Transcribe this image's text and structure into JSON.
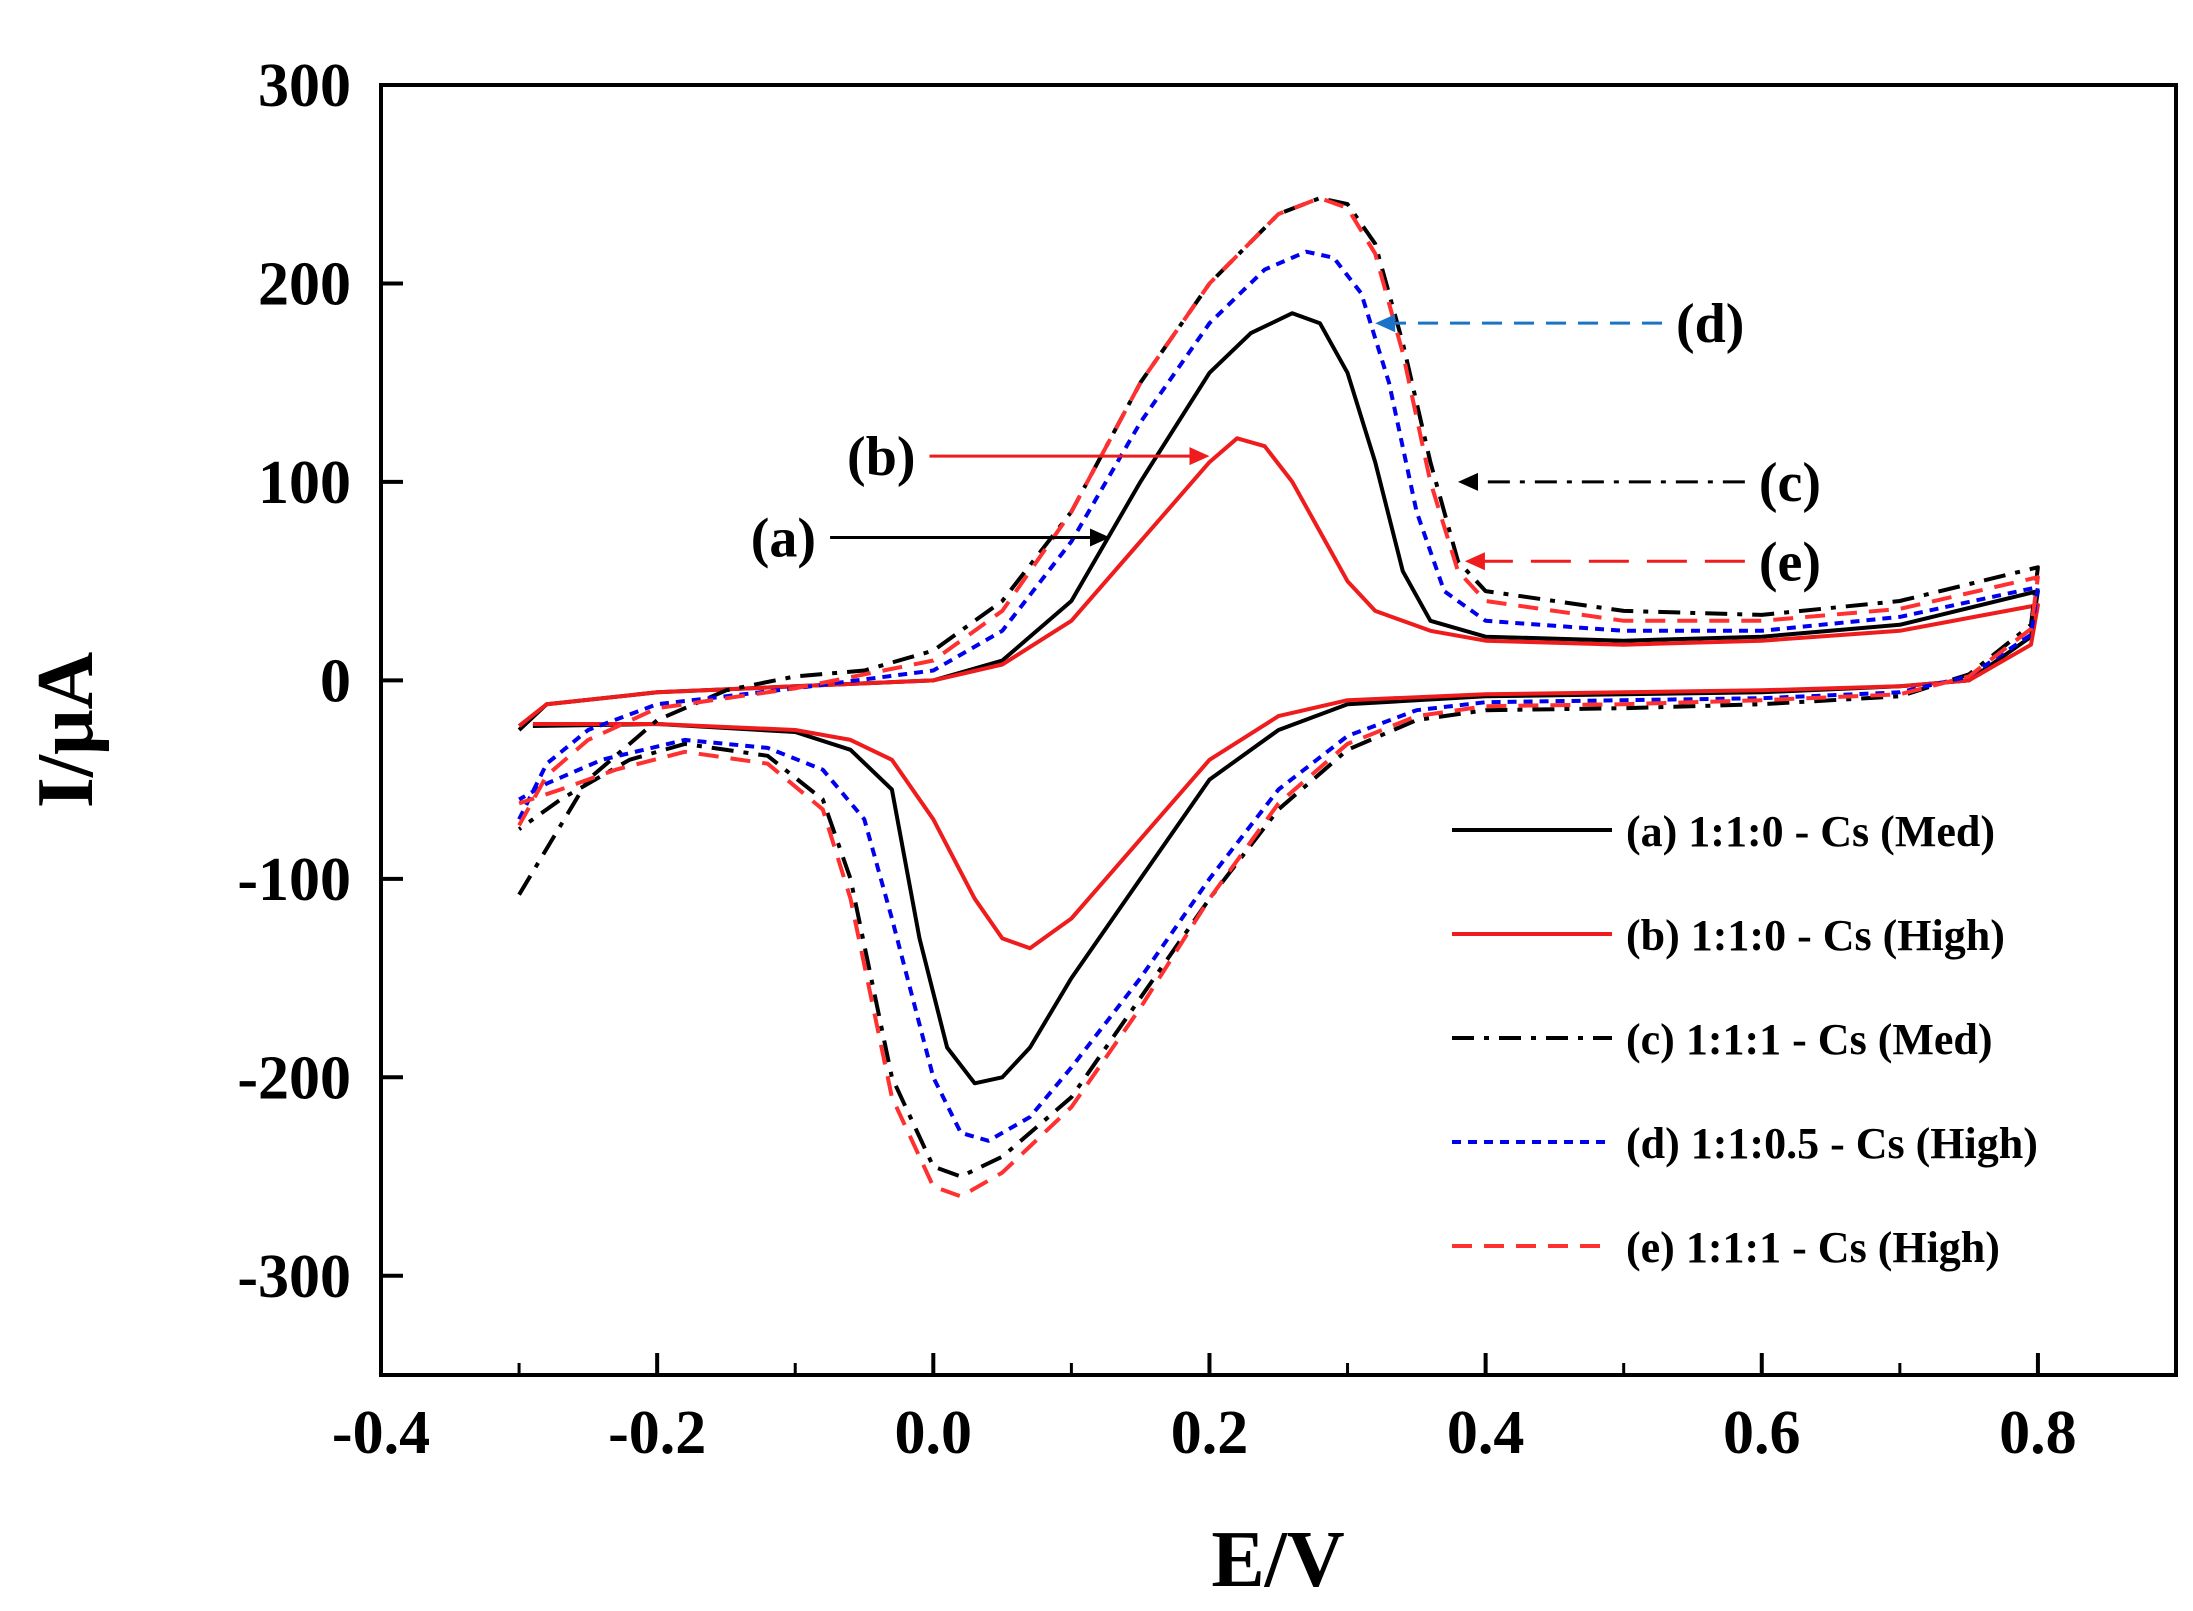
{
  "chart_data": {
    "type": "line",
    "title": "",
    "xlabel": "E/V",
    "ylabel": "I/μA",
    "xlim": [
      -0.4,
      0.9
    ],
    "ylim": [
      -350,
      300
    ],
    "x_ticks": [
      -0.4,
      -0.2,
      0.0,
      0.2,
      0.4,
      0.6,
      0.8
    ],
    "x_tick_labels": [
      "-0.4",
      "-0.2",
      "0.0",
      "0.2",
      "0.4",
      "0.6",
      "0.8"
    ],
    "y_ticks": [
      -300,
      -200,
      -100,
      0,
      100,
      200,
      300
    ],
    "y_tick_labels": [
      "-300",
      "-200",
      "-100",
      "0",
      "100",
      "200",
      "300"
    ],
    "grid": false,
    "legend_position": "bottom-right",
    "series": [
      {
        "name": "(a) 1:1:0 - Cs (Med)",
        "tag": "(a)",
        "color": "#000000",
        "dash": "solid",
        "points": [
          [
            -0.3,
            -25
          ],
          [
            -0.28,
            -12
          ],
          [
            -0.2,
            -6
          ],
          [
            -0.1,
            -3
          ],
          [
            0.0,
            0
          ],
          [
            0.05,
            10
          ],
          [
            0.1,
            40
          ],
          [
            0.15,
            100
          ],
          [
            0.2,
            155
          ],
          [
            0.23,
            175
          ],
          [
            0.26,
            185
          ],
          [
            0.28,
            180
          ],
          [
            0.3,
            155
          ],
          [
            0.32,
            110
          ],
          [
            0.34,
            55
          ],
          [
            0.36,
            30
          ],
          [
            0.4,
            22
          ],
          [
            0.5,
            20
          ],
          [
            0.6,
            22
          ],
          [
            0.7,
            28
          ],
          [
            0.8,
            45
          ],
          [
            0.795,
            22
          ],
          [
            0.75,
            0
          ],
          [
            0.7,
            -3
          ],
          [
            0.6,
            -6
          ],
          [
            0.5,
            -7
          ],
          [
            0.4,
            -8
          ],
          [
            0.3,
            -12
          ],
          [
            0.25,
            -25
          ],
          [
            0.2,
            -50
          ],
          [
            0.15,
            -100
          ],
          [
            0.1,
            -150
          ],
          [
            0.07,
            -185
          ],
          [
            0.05,
            -200
          ],
          [
            0.03,
            -203
          ],
          [
            0.01,
            -185
          ],
          [
            -0.01,
            -130
          ],
          [
            -0.03,
            -55
          ],
          [
            -0.06,
            -35
          ],
          [
            -0.1,
            -26
          ],
          [
            -0.2,
            -22
          ],
          [
            -0.29,
            -23
          ]
        ]
      },
      {
        "name": "(b) 1:1:0 - Cs (High)",
        "tag": "(b)",
        "color": "#ee1c1c",
        "dash": "solid",
        "points": [
          [
            -0.3,
            -23
          ],
          [
            -0.28,
            -12
          ],
          [
            -0.2,
            -6
          ],
          [
            -0.1,
            -3
          ],
          [
            0.0,
            0
          ],
          [
            0.05,
            8
          ],
          [
            0.1,
            30
          ],
          [
            0.15,
            70
          ],
          [
            0.2,
            110
          ],
          [
            0.22,
            122
          ],
          [
            0.24,
            118
          ],
          [
            0.26,
            100
          ],
          [
            0.28,
            75
          ],
          [
            0.3,
            50
          ],
          [
            0.32,
            35
          ],
          [
            0.36,
            25
          ],
          [
            0.4,
            20
          ],
          [
            0.5,
            18
          ],
          [
            0.6,
            20
          ],
          [
            0.7,
            25
          ],
          [
            0.8,
            38
          ],
          [
            0.795,
            18
          ],
          [
            0.75,
            0
          ],
          [
            0.7,
            -3
          ],
          [
            0.6,
            -5
          ],
          [
            0.5,
            -6
          ],
          [
            0.4,
            -7
          ],
          [
            0.3,
            -10
          ],
          [
            0.25,
            -18
          ],
          [
            0.2,
            -40
          ],
          [
            0.15,
            -80
          ],
          [
            0.1,
            -120
          ],
          [
            0.07,
            -135
          ],
          [
            0.05,
            -130
          ],
          [
            0.03,
            -110
          ],
          [
            0.0,
            -70
          ],
          [
            -0.03,
            -40
          ],
          [
            -0.06,
            -30
          ],
          [
            -0.1,
            -25
          ],
          [
            -0.2,
            -22
          ],
          [
            -0.29,
            -22
          ]
        ]
      },
      {
        "name": "(c) 1:1:1 - Cs (Med)",
        "tag": "(c)",
        "color": "#000000",
        "dash": "dashdot",
        "points": [
          [
            -0.3,
            -108
          ],
          [
            -0.25,
            -50
          ],
          [
            -0.2,
            -20
          ],
          [
            -0.15,
            -5
          ],
          [
            -0.1,
            2
          ],
          [
            -0.05,
            5
          ],
          [
            0.0,
            15
          ],
          [
            0.05,
            40
          ],
          [
            0.1,
            85
          ],
          [
            0.15,
            150
          ],
          [
            0.2,
            200
          ],
          [
            0.25,
            235
          ],
          [
            0.28,
            243
          ],
          [
            0.3,
            240
          ],
          [
            0.32,
            220
          ],
          [
            0.34,
            170
          ],
          [
            0.36,
            110
          ],
          [
            0.38,
            60
          ],
          [
            0.4,
            45
          ],
          [
            0.5,
            35
          ],
          [
            0.6,
            33
          ],
          [
            0.7,
            40
          ],
          [
            0.8,
            57
          ],
          [
            0.795,
            28
          ],
          [
            0.75,
            3
          ],
          [
            0.7,
            -8
          ],
          [
            0.6,
            -12
          ],
          [
            0.5,
            -14
          ],
          [
            0.4,
            -15
          ],
          [
            0.35,
            -20
          ],
          [
            0.3,
            -35
          ],
          [
            0.25,
            -65
          ],
          [
            0.2,
            -110
          ],
          [
            0.15,
            -160
          ],
          [
            0.1,
            -210
          ],
          [
            0.05,
            -240
          ],
          [
            0.02,
            -250
          ],
          [
            0.0,
            -245
          ],
          [
            -0.03,
            -200
          ],
          [
            -0.06,
            -100
          ],
          [
            -0.08,
            -60
          ],
          [
            -0.12,
            -38
          ],
          [
            -0.18,
            -32
          ],
          [
            -0.22,
            -40
          ],
          [
            -0.27,
            -60
          ],
          [
            -0.3,
            -75
          ]
        ]
      },
      {
        "name": "(d) 1:1:0.5 - Cs (High)",
        "tag": "(d)",
        "color": "#0000ee",
        "dash": "dotted",
        "points": [
          [
            -0.3,
            -70
          ],
          [
            -0.28,
            -42
          ],
          [
            -0.25,
            -25
          ],
          [
            -0.2,
            -12
          ],
          [
            -0.1,
            -4
          ],
          [
            0.0,
            5
          ],
          [
            0.05,
            25
          ],
          [
            0.1,
            70
          ],
          [
            0.15,
            130
          ],
          [
            0.2,
            180
          ],
          [
            0.24,
            207
          ],
          [
            0.27,
            216
          ],
          [
            0.29,
            213
          ],
          [
            0.31,
            195
          ],
          [
            0.33,
            150
          ],
          [
            0.35,
            85
          ],
          [
            0.37,
            45
          ],
          [
            0.4,
            30
          ],
          [
            0.5,
            25
          ],
          [
            0.6,
            25
          ],
          [
            0.7,
            32
          ],
          [
            0.8,
            47
          ],
          [
            0.795,
            23
          ],
          [
            0.75,
            2
          ],
          [
            0.7,
            -6
          ],
          [
            0.6,
            -9
          ],
          [
            0.5,
            -10
          ],
          [
            0.4,
            -11
          ],
          [
            0.35,
            -15
          ],
          [
            0.3,
            -28
          ],
          [
            0.25,
            -55
          ],
          [
            0.2,
            -100
          ],
          [
            0.15,
            -150
          ],
          [
            0.1,
            -195
          ],
          [
            0.07,
            -220
          ],
          [
            0.04,
            -232
          ],
          [
            0.02,
            -228
          ],
          [
            0.0,
            -200
          ],
          [
            -0.03,
            -120
          ],
          [
            -0.05,
            -70
          ],
          [
            -0.08,
            -45
          ],
          [
            -0.12,
            -34
          ],
          [
            -0.18,
            -30
          ],
          [
            -0.24,
            -40
          ],
          [
            -0.28,
            -52
          ],
          [
            -0.3,
            -60
          ]
        ]
      },
      {
        "name": "(e) 1:1:1 - Cs (High)",
        "tag": "(e)",
        "color": "#ff3030",
        "dash": "dashed",
        "points": [
          [
            -0.3,
            -73
          ],
          [
            -0.28,
            -48
          ],
          [
            -0.25,
            -30
          ],
          [
            -0.2,
            -14
          ],
          [
            -0.1,
            -4
          ],
          [
            0.0,
            10
          ],
          [
            0.05,
            35
          ],
          [
            0.1,
            85
          ],
          [
            0.15,
            150
          ],
          [
            0.2,
            200
          ],
          [
            0.25,
            235
          ],
          [
            0.28,
            243
          ],
          [
            0.3,
            238
          ],
          [
            0.32,
            215
          ],
          [
            0.34,
            165
          ],
          [
            0.36,
            100
          ],
          [
            0.38,
            55
          ],
          [
            0.4,
            40
          ],
          [
            0.5,
            30
          ],
          [
            0.6,
            30
          ],
          [
            0.7,
            36
          ],
          [
            0.8,
            52
          ],
          [
            0.795,
            26
          ],
          [
            0.75,
            2
          ],
          [
            0.7,
            -7
          ],
          [
            0.6,
            -10
          ],
          [
            0.5,
            -12
          ],
          [
            0.4,
            -13
          ],
          [
            0.35,
            -18
          ],
          [
            0.3,
            -32
          ],
          [
            0.25,
            -62
          ],
          [
            0.2,
            -110
          ],
          [
            0.15,
            -165
          ],
          [
            0.1,
            -215
          ],
          [
            0.05,
            -248
          ],
          [
            0.02,
            -260
          ],
          [
            0.0,
            -255
          ],
          [
            -0.03,
            -210
          ],
          [
            -0.06,
            -110
          ],
          [
            -0.08,
            -65
          ],
          [
            -0.12,
            -42
          ],
          [
            -0.18,
            -36
          ],
          [
            -0.23,
            -45
          ],
          [
            -0.27,
            -55
          ],
          [
            -0.3,
            -62
          ]
        ]
      }
    ],
    "annotations": [
      {
        "label": "(a)",
        "color": "#000000",
        "dash": "solid",
        "from": [
          0.0,
          0
        ],
        "at": [
          -0.082,
          72
        ],
        "tip": [
          0.128,
          72
        ]
      },
      {
        "label": "(b)",
        "color": "#ee1c1c",
        "dash": "solid",
        "at": [
          -0.01,
          113
        ],
        "tip": [
          0.2,
          113
        ]
      },
      {
        "label": "(c)",
        "color": "#000000",
        "dash": "dashdot",
        "at": [
          0.595,
          100
        ],
        "tip": [
          0.38,
          100
        ]
      },
      {
        "label": "(d)",
        "color": "#1a73c8",
        "dash": "dashed",
        "at": [
          0.535,
          180
        ],
        "tip": [
          0.32,
          180
        ]
      },
      {
        "label": "(e)",
        "color": "#ee1c1c",
        "dash": "longdash",
        "at": [
          0.595,
          60
        ],
        "tip": [
          0.385,
          60
        ]
      }
    ]
  }
}
